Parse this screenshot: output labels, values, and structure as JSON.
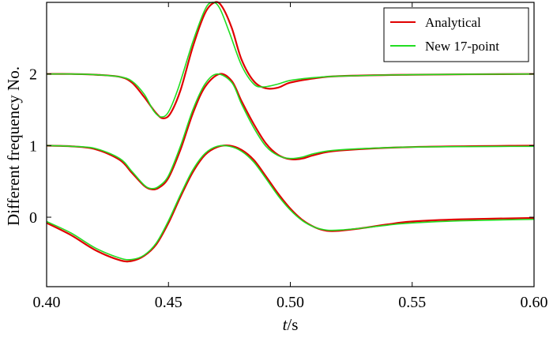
{
  "chart_data": {
    "type": "line",
    "xlabel": {
      "italic": "t",
      "rest": "/s"
    },
    "ylabel": "Different frequency No.",
    "xlim": [
      0.4,
      0.6
    ],
    "ylim": [
      -0.97,
      3.0
    ],
    "xticks": [
      "0.40",
      "0.45",
      "0.50",
      "0.55",
      "0.60"
    ],
    "yticks": [
      "0",
      "1",
      "2"
    ],
    "legend_position": "top-right",
    "series": [
      {
        "name": "Analytical",
        "color": "#e00000",
        "traces": [
          {
            "offset": 2,
            "x": [
              0.4,
              0.41,
              0.42,
              0.43,
              0.435,
              0.44,
              0.445,
              0.448,
              0.451,
              0.455,
              0.46,
              0.465,
              0.469,
              0.472,
              0.476,
              0.48,
              0.485,
              0.49,
              0.495,
              0.5,
              0.51,
              0.52,
              0.55,
              0.6
            ],
            "y": [
              2.0,
              2.0,
              1.99,
              1.96,
              1.88,
              1.68,
              1.45,
              1.38,
              1.46,
              1.78,
              2.38,
              2.85,
              3.0,
              2.94,
              2.64,
              2.2,
              1.9,
              1.8,
              1.81,
              1.88,
              1.94,
              1.97,
              1.99,
              2.0
            ]
          },
          {
            "offset": 1,
            "x": [
              0.4,
              0.41,
              0.42,
              0.43,
              0.435,
              0.44,
              0.443,
              0.446,
              0.45,
              0.455,
              0.46,
              0.465,
              0.471,
              0.476,
              0.48,
              0.485,
              0.49,
              0.495,
              0.5,
              0.505,
              0.51,
              0.52,
              0.55,
              0.6
            ],
            "y": [
              1.0,
              0.99,
              0.95,
              0.8,
              0.62,
              0.44,
              0.39,
              0.41,
              0.55,
              0.95,
              1.45,
              1.82,
              2.0,
              1.9,
              1.62,
              1.3,
              1.03,
              0.87,
              0.81,
              0.82,
              0.87,
              0.93,
              0.98,
              1.0
            ]
          },
          {
            "offset": 0,
            "x": [
              0.4,
              0.41,
              0.42,
              0.43,
              0.435,
              0.44,
              0.445,
              0.45,
              0.455,
              0.46,
              0.465,
              0.47,
              0.475,
              0.48,
              0.485,
              0.49,
              0.495,
              0.5,
              0.505,
              0.51,
              0.515,
              0.52,
              0.53,
              0.54,
              0.55,
              0.57,
              0.6
            ],
            "y": [
              -0.08,
              -0.25,
              -0.46,
              -0.6,
              -0.61,
              -0.54,
              -0.38,
              -0.08,
              0.29,
              0.63,
              0.87,
              0.98,
              1.0,
              0.94,
              0.8,
              0.57,
              0.33,
              0.12,
              -0.04,
              -0.14,
              -0.19,
              -0.19,
              -0.15,
              -0.1,
              -0.06,
              -0.03,
              -0.01
            ]
          }
        ]
      },
      {
        "name": "New 17-point",
        "color": "#22dd22",
        "traces": [
          {
            "offset": 2,
            "x": [
              0.4,
              0.41,
              0.42,
              0.43,
              0.435,
              0.44,
              0.444,
              0.447,
              0.45,
              0.454,
              0.46,
              0.465,
              0.468,
              0.471,
              0.475,
              0.48,
              0.485,
              0.489,
              0.495,
              0.5,
              0.51,
              0.52,
              0.55,
              0.6
            ],
            "y": [
              2.0,
              2.0,
              1.99,
              1.96,
              1.9,
              1.72,
              1.48,
              1.4,
              1.47,
              1.8,
              2.45,
              2.9,
              3.0,
              2.92,
              2.58,
              2.12,
              1.86,
              1.82,
              1.86,
              1.91,
              1.95,
              1.97,
              1.99,
              2.0
            ]
          },
          {
            "offset": 1,
            "x": [
              0.4,
              0.41,
              0.42,
              0.43,
              0.435,
              0.44,
              0.443,
              0.446,
              0.45,
              0.455,
              0.46,
              0.465,
              0.47,
              0.476,
              0.48,
              0.485,
              0.49,
              0.495,
              0.5,
              0.505,
              0.51,
              0.52,
              0.55,
              0.6
            ],
            "y": [
              1.0,
              0.99,
              0.96,
              0.82,
              0.64,
              0.45,
              0.4,
              0.43,
              0.58,
              1.0,
              1.5,
              1.86,
              2.0,
              1.88,
              1.58,
              1.25,
              0.99,
              0.86,
              0.82,
              0.84,
              0.89,
              0.94,
              0.98,
              0.99
            ]
          },
          {
            "offset": 0,
            "x": [
              0.4,
              0.41,
              0.42,
              0.43,
              0.435,
              0.44,
              0.445,
              0.45,
              0.455,
              0.46,
              0.465,
              0.47,
              0.475,
              0.48,
              0.485,
              0.49,
              0.495,
              0.5,
              0.505,
              0.51,
              0.515,
              0.52,
              0.53,
              0.54,
              0.55,
              0.57,
              0.6
            ],
            "y": [
              -0.06,
              -0.22,
              -0.43,
              -0.57,
              -0.59,
              -0.53,
              -0.36,
              -0.05,
              0.32,
              0.66,
              0.89,
              0.99,
              0.99,
              0.92,
              0.77,
              0.54,
              0.3,
              0.1,
              -0.05,
              -0.14,
              -0.18,
              -0.18,
              -0.15,
              -0.11,
              -0.08,
              -0.05,
              -0.03
            ]
          }
        ]
      }
    ]
  }
}
